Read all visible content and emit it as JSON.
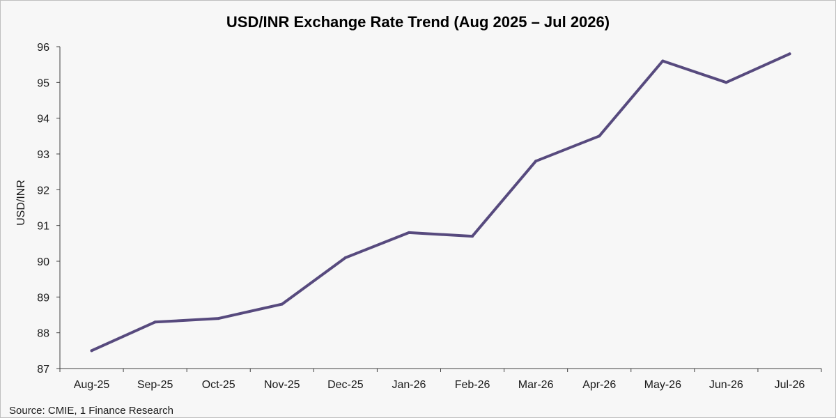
{
  "chart_data": {
    "type": "line",
    "title": "USD/INR Exchange Rate Trend (Aug 2025 – Jul 2026)",
    "ylabel": "USD/INR",
    "xlabel": "",
    "categories": [
      "Aug-25",
      "Sep-25",
      "Oct-25",
      "Nov-25",
      "Dec-25",
      "Jan-26",
      "Feb-26",
      "Mar-26",
      "Apr-26",
      "May-26",
      "Jun-26",
      "Jul-26"
    ],
    "series": [
      {
        "values": [
          87.5,
          88.3,
          88.4,
          88.8,
          90.1,
          90.8,
          90.7,
          92.8,
          93.5,
          95.6,
          95.0,
          95.8
        ],
        "color": "#574a7e"
      }
    ],
    "ylim": [
      87,
      96
    ],
    "yticks": [
      87,
      88,
      89,
      90,
      91,
      92,
      93,
      94,
      95,
      96
    ],
    "grid": false,
    "legend": "none"
  },
  "source_note": "Source: CMIE, 1 Finance Research"
}
